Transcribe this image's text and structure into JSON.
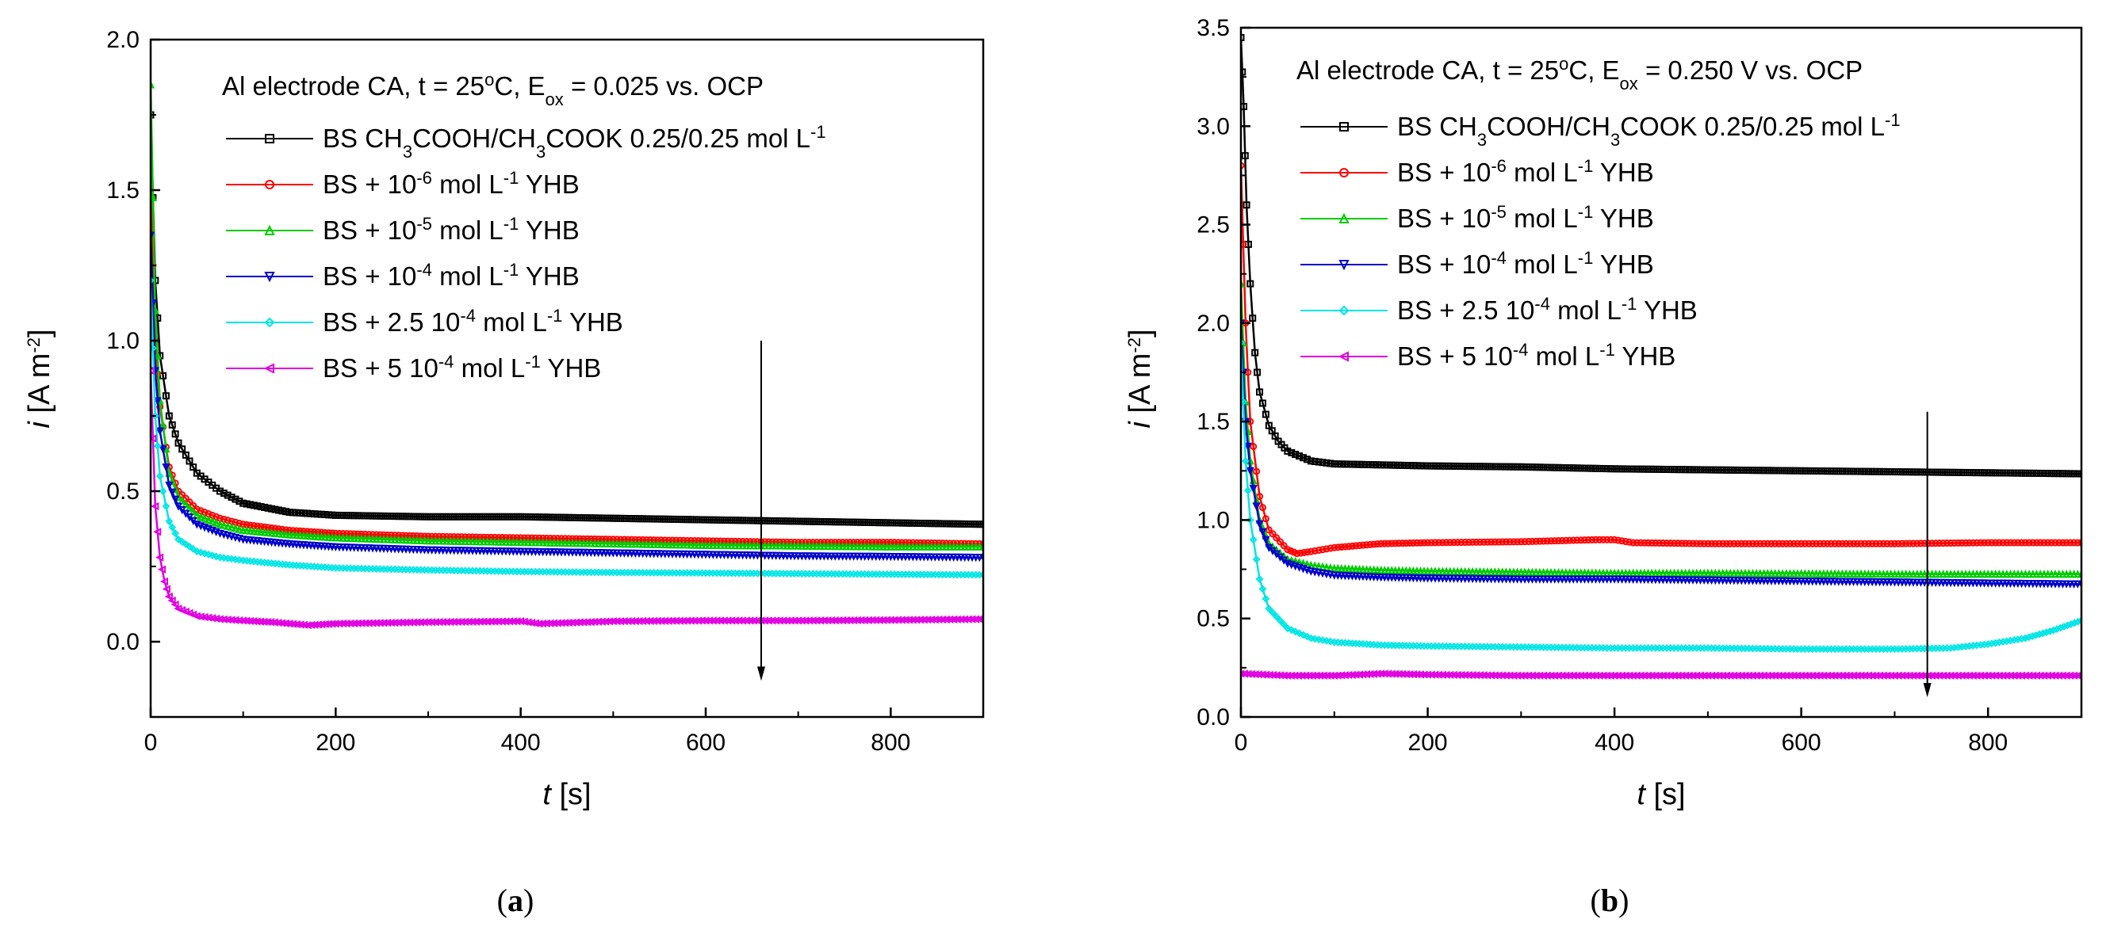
{
  "chart_data": [
    {
      "id": "a",
      "type": "line",
      "caption": "a",
      "title": "Al electrode CA, t = 25oC, Eox = 0.025 vs. OCP",
      "title_parts": [
        {
          "t": "Al electrode CA, t = 25"
        },
        {
          "t": "o",
          "s": "sup"
        },
        {
          "t": "C, E"
        },
        {
          "t": "ox",
          "s": "sub"
        },
        {
          "t": " = 0.025 vs. OCP"
        }
      ],
      "xlabel": "t [s]",
      "xlabel_var": "t",
      "xlabel_unit": " [s]",
      "ylabel": "i [A m-2]",
      "ylabel_var": "i",
      "ylabel_unit": " [A m",
      "ylabel_exp": "-2",
      "ylabel_close": "]",
      "xlim": [
        0,
        900
      ],
      "ylim": [
        -0.25,
        2.0
      ],
      "xticks": [
        0,
        200,
        400,
        600,
        800
      ],
      "xtick_labels": [
        "0",
        "200",
        "400",
        "600",
        "800"
      ],
      "yticks": [
        0.0,
        0.5,
        1.0,
        1.5,
        2.0
      ],
      "ytick_labels": [
        "0.0",
        "0.5",
        "1.0",
        "1.5",
        "2.0"
      ],
      "arrow": {
        "x": 660,
        "y_start": 1.0,
        "y_end": -0.13
      },
      "series": [
        {
          "name": "BS CH3COOH/CH3COOK 0.25/0.25 mol L-1",
          "color": "#000000",
          "marker": "square",
          "x": [
            0,
            5,
            10,
            20,
            30,
            50,
            75,
            100,
            150,
            200,
            300,
            400,
            500,
            600,
            700,
            800,
            900
          ],
          "y": [
            1.75,
            1.2,
            0.95,
            0.75,
            0.66,
            0.56,
            0.5,
            0.46,
            0.43,
            0.42,
            0.415,
            0.415,
            0.41,
            0.405,
            0.4,
            0.395,
            0.39
          ]
        },
        {
          "name": "BS + 10-6 mol L-1 YHB",
          "color": "#ff0000",
          "marker": "circle",
          "x": [
            0,
            5,
            10,
            20,
            30,
            50,
            75,
            100,
            150,
            200,
            300,
            400,
            500,
            600,
            700,
            800,
            900
          ],
          "y": [
            1.5,
            1.0,
            0.78,
            0.58,
            0.5,
            0.44,
            0.41,
            0.39,
            0.37,
            0.36,
            0.35,
            0.345,
            0.34,
            0.335,
            0.33,
            0.33,
            0.325
          ]
        },
        {
          "name": "BS + 10-5 mol L-1 YHB",
          "color": "#00cc00",
          "marker": "triangle-up",
          "x": [
            0,
            5,
            10,
            20,
            30,
            50,
            75,
            100,
            150,
            200,
            300,
            400,
            500,
            600,
            700,
            800,
            900
          ],
          "y": [
            1.85,
            1.1,
            0.8,
            0.56,
            0.48,
            0.42,
            0.39,
            0.37,
            0.355,
            0.345,
            0.335,
            0.33,
            0.325,
            0.32,
            0.318,
            0.315,
            0.315
          ]
        },
        {
          "name": "BS + 10-4 mol L-1 YHB",
          "color": "#0000cc",
          "marker": "triangle-down",
          "x": [
            0,
            5,
            10,
            20,
            30,
            50,
            75,
            100,
            150,
            200,
            300,
            400,
            500,
            600,
            700,
            800,
            900
          ],
          "y": [
            1.35,
            0.9,
            0.7,
            0.52,
            0.45,
            0.39,
            0.36,
            0.34,
            0.325,
            0.315,
            0.305,
            0.3,
            0.295,
            0.29,
            0.285,
            0.283,
            0.28
          ]
        },
        {
          "name": "BS + 2.5 10-4 mol L-1 YHB",
          "color": "#00e5e5",
          "marker": "diamond",
          "x": [
            0,
            5,
            10,
            20,
            30,
            50,
            75,
            100,
            150,
            200,
            300,
            400,
            500,
            600,
            700,
            800,
            900
          ],
          "y": [
            1.2,
            0.75,
            0.55,
            0.4,
            0.34,
            0.3,
            0.28,
            0.27,
            0.255,
            0.245,
            0.238,
            0.233,
            0.23,
            0.228,
            0.226,
            0.224,
            0.222
          ]
        },
        {
          "name": "BS + 5 10-4 mol L-1 YHB",
          "color": "#e000e0",
          "marker": "triangle-left",
          "x": [
            0,
            5,
            10,
            15,
            20,
            30,
            50,
            75,
            100,
            130,
            150,
            170,
            200,
            300,
            400,
            420,
            500,
            600,
            700,
            800,
            900
          ],
          "y": [
            0.9,
            0.45,
            0.28,
            0.2,
            0.15,
            0.11,
            0.085,
            0.075,
            0.07,
            0.065,
            0.06,
            0.055,
            0.06,
            0.065,
            0.068,
            0.06,
            0.068,
            0.07,
            0.07,
            0.072,
            0.075
          ]
        }
      ],
      "legend_labels": [
        [
          {
            "t": "BS CH"
          },
          {
            "t": "3",
            "s": "sub"
          },
          {
            "t": "COOH/CH"
          },
          {
            "t": "3",
            "s": "sub"
          },
          {
            "t": "COOK 0.25/0.25 mol L"
          },
          {
            "t": "-1",
            "s": "sup"
          }
        ],
        [
          {
            "t": "BS + 10"
          },
          {
            "t": "-6",
            "s": "sup"
          },
          {
            "t": " mol L"
          },
          {
            "t": "-1",
            "s": "sup"
          },
          {
            "t": " YHB"
          }
        ],
        [
          {
            "t": "BS + 10"
          },
          {
            "t": "-5",
            "s": "sup"
          },
          {
            "t": " mol L"
          },
          {
            "t": "-1",
            "s": "sup"
          },
          {
            "t": " YHB"
          }
        ],
        [
          {
            "t": "BS + 10"
          },
          {
            "t": "-4",
            "s": "sup"
          },
          {
            "t": " mol L"
          },
          {
            "t": "-1",
            "s": "sup"
          },
          {
            "t": " YHB"
          }
        ],
        [
          {
            "t": "BS + 2.5 10"
          },
          {
            "t": "-4",
            "s": "sup"
          },
          {
            "t": " mol L"
          },
          {
            "t": "-1",
            "s": "sup"
          },
          {
            "t": " YHB"
          }
        ],
        [
          {
            "t": "BS + 5 10"
          },
          {
            "t": "-4",
            "s": "sup"
          },
          {
            "t": " mol L"
          },
          {
            "t": "-1",
            "s": "sup"
          },
          {
            "t": " YHB"
          }
        ]
      ]
    },
    {
      "id": "b",
      "type": "line",
      "caption": "b",
      "title": "Al electrode CA, t = 25oC, Eox = 0.250 V vs. OCP",
      "title_parts": [
        {
          "t": "Al electrode CA, t = 25"
        },
        {
          "t": "o",
          "s": "sup"
        },
        {
          "t": "C, E"
        },
        {
          "t": "ox",
          "s": "sub"
        },
        {
          "t": " = 0.250 V vs. OCP"
        }
      ],
      "xlabel": "t [s]",
      "xlabel_var": "t",
      "xlabel_unit": " [s]",
      "ylabel": "i [A m-2]",
      "ylabel_var": "i",
      "ylabel_unit": " [A m",
      "ylabel_exp": "-2",
      "ylabel_close": "]",
      "xlim": [
        0,
        900
      ],
      "ylim": [
        0.0,
        3.5
      ],
      "xticks": [
        0,
        200,
        400,
        600,
        800
      ],
      "xtick_labels": [
        "0",
        "200",
        "400",
        "600",
        "800"
      ],
      "yticks": [
        0.0,
        0.5,
        1.0,
        1.5,
        2.0,
        2.5,
        3.0,
        3.5
      ],
      "ytick_labels": [
        "0.0",
        "0.5",
        "1.0",
        "1.5",
        "2.0",
        "2.5",
        "3.0",
        "3.5"
      ],
      "arrow": {
        "x": 735,
        "y_start": 1.55,
        "y_end": 0.1
      },
      "series": [
        {
          "name": "BS CH3COOH/CH3COOK 0.25/0.25 mol L-1",
          "color": "#000000",
          "marker": "square",
          "x": [
            0,
            3,
            6,
            10,
            15,
            20,
            30,
            40,
            50,
            75,
            100,
            150,
            200,
            300,
            400,
            500,
            600,
            700,
            800,
            900
          ],
          "y": [
            3.45,
            3.1,
            2.6,
            2.2,
            1.85,
            1.65,
            1.48,
            1.4,
            1.35,
            1.3,
            1.285,
            1.28,
            1.275,
            1.27,
            1.26,
            1.255,
            1.25,
            1.245,
            1.24,
            1.235
          ]
        },
        {
          "name": "BS + 10-6 mol L-1 YHB",
          "color": "#ff0000",
          "marker": "circle",
          "x": [
            0,
            5,
            10,
            20,
            30,
            50,
            60,
            75,
            100,
            150,
            200,
            300,
            380,
            400,
            420,
            500,
            600,
            700,
            800,
            900
          ],
          "y": [
            2.8,
            2.0,
            1.5,
            1.12,
            0.95,
            0.85,
            0.83,
            0.84,
            0.86,
            0.88,
            0.885,
            0.89,
            0.9,
            0.9,
            0.885,
            0.88,
            0.88,
            0.88,
            0.885,
            0.885
          ]
        },
        {
          "name": "BS + 10-5 mol L-1 YHB",
          "color": "#00cc00",
          "marker": "triangle-up",
          "x": [
            0,
            5,
            10,
            20,
            30,
            50,
            75,
            100,
            150,
            200,
            300,
            400,
            500,
            600,
            700,
            800,
            900
          ],
          "y": [
            2.2,
            1.6,
            1.3,
            1.0,
            0.88,
            0.8,
            0.77,
            0.755,
            0.745,
            0.74,
            0.735,
            0.73,
            0.73,
            0.728,
            0.725,
            0.725,
            0.725
          ]
        },
        {
          "name": "BS + 10-4 mol L-1 YHB",
          "color": "#0000cc",
          "marker": "triangle-down",
          "x": [
            0,
            5,
            10,
            20,
            30,
            50,
            75,
            100,
            150,
            200,
            300,
            400,
            500,
            600,
            700,
            800,
            900
          ],
          "y": [
            2.0,
            1.5,
            1.25,
            0.98,
            0.86,
            0.78,
            0.74,
            0.72,
            0.71,
            0.705,
            0.7,
            0.7,
            0.695,
            0.69,
            0.685,
            0.68,
            0.675
          ]
        },
        {
          "name": "BS + 2.5 10-4 mol L-1 YHB",
          "color": "#00e5e5",
          "marker": "diamond",
          "x": [
            0,
            5,
            10,
            20,
            30,
            50,
            75,
            100,
            150,
            200,
            300,
            400,
            500,
            600,
            700,
            760,
            800,
            840,
            870,
            900
          ],
          "y": [
            1.9,
            1.3,
            1.0,
            0.7,
            0.55,
            0.45,
            0.4,
            0.38,
            0.365,
            0.36,
            0.355,
            0.35,
            0.35,
            0.345,
            0.345,
            0.35,
            0.37,
            0.4,
            0.44,
            0.49
          ]
        },
        {
          "name": "BS + 5 10-4 mol L-1 YHB",
          "color": "#e000e0",
          "marker": "triangle-left",
          "x": [
            0,
            50,
            100,
            150,
            200,
            300,
            400,
            500,
            600,
            700,
            800,
            900
          ],
          "y": [
            0.22,
            0.21,
            0.21,
            0.22,
            0.215,
            0.21,
            0.21,
            0.21,
            0.21,
            0.21,
            0.21,
            0.21
          ]
        }
      ],
      "legend_labels": [
        [
          {
            "t": "BS CH"
          },
          {
            "t": "3",
            "s": "sub"
          },
          {
            "t": "COOH/CH"
          },
          {
            "t": "3",
            "s": "sub"
          },
          {
            "t": "COOK 0.25/0.25 mol L"
          },
          {
            "t": "-1",
            "s": "sup"
          }
        ],
        [
          {
            "t": "BS + 10"
          },
          {
            "t": "-6",
            "s": "sup"
          },
          {
            "t": " mol L"
          },
          {
            "t": "-1",
            "s": "sup"
          },
          {
            "t": " YHB"
          }
        ],
        [
          {
            "t": "BS + 10"
          },
          {
            "t": "-5",
            "s": "sup"
          },
          {
            "t": " mol L"
          },
          {
            "t": "-1",
            "s": "sup"
          },
          {
            "t": " YHB"
          }
        ],
        [
          {
            "t": "BS + 10"
          },
          {
            "t": "-4",
            "s": "sup"
          },
          {
            "t": " mol L"
          },
          {
            "t": "-1",
            "s": "sup"
          },
          {
            "t": " YHB"
          }
        ],
        [
          {
            "t": "BS + 2.5 10"
          },
          {
            "t": "-4",
            "s": "sup"
          },
          {
            "t": " mol L"
          },
          {
            "t": "-1",
            "s": "sup"
          },
          {
            "t": " YHB"
          }
        ],
        [
          {
            "t": "BS + 5 10"
          },
          {
            "t": "-4",
            "s": "sup"
          },
          {
            "t": " mol L"
          },
          {
            "t": "-1",
            "s": "sup"
          },
          {
            "t": " YHB"
          }
        ]
      ]
    }
  ]
}
